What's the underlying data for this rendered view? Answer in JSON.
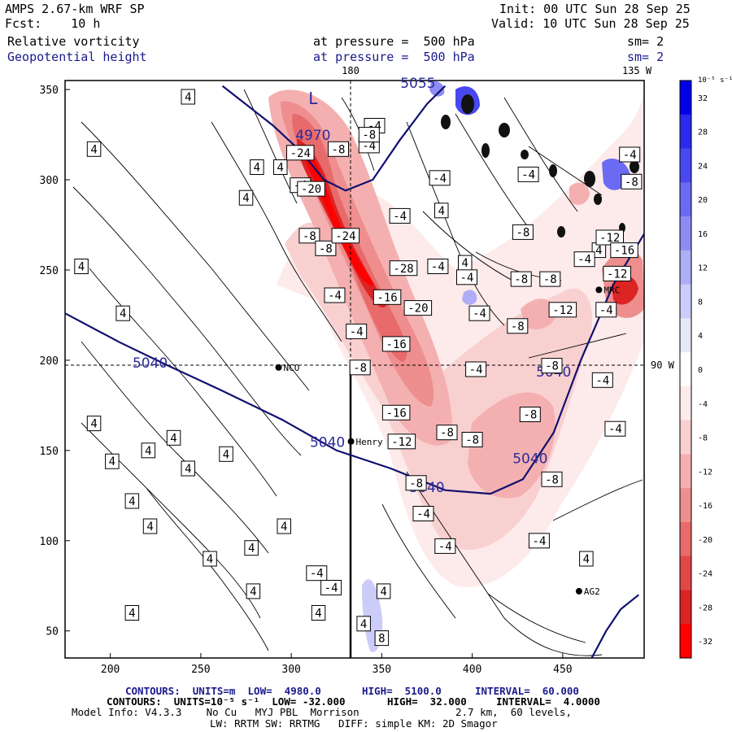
{
  "header": {
    "model": "AMPS 2.67-km WRF SP",
    "fcst": "Fcst:    10 h",
    "init": "Init: 00 UTC Sun 28 Sep 25",
    "valid": "Valid: 10 UTC Sun 28 Sep 25",
    "field1": "Relative vorticity",
    "field2": "Geopotential height",
    "pressure1": "at pressure =  500 hPa",
    "pressure2": "at pressure =  500 hPa",
    "sm1": "sm= 2",
    "sm2": "sm= 2"
  },
  "map": {
    "lon_top_180": "180",
    "lon_top_135w": "135 W",
    "lon_right_90w": "90 W",
    "stations": [
      {
        "name": "NCO",
        "x": 293,
        "y": 196
      },
      {
        "name": "Henry",
        "x": 333,
        "y": 155
      },
      {
        "name": "MRC",
        "x": 470,
        "y": 239
      },
      {
        "name": "AG2",
        "x": 459,
        "y": 72
      }
    ]
  },
  "colorbar": {
    "unit_label": "10⁻⁵ s⁻¹",
    "levels": [
      "32",
      "28",
      "24",
      "20",
      "16",
      "12",
      "8",
      "4",
      "0",
      "-4",
      "-8",
      "-12",
      "-16",
      "-20",
      "-24",
      "-28",
      "-32"
    ],
    "colors": [
      "#0000e8",
      "#2a2aee",
      "#4848f0",
      "#6a6af2",
      "#8c8cf4",
      "#aeaef6",
      "#ccccf8",
      "#e8e8fb",
      "#ffffff",
      "#fdeaea",
      "#f9d0d0",
      "#f4b0b0",
      "#ee8e8e",
      "#e86a6a",
      "#e24848",
      "#dc2424",
      "#ff0000"
    ]
  },
  "chart_data": {
    "type": "heatmap",
    "title": "Relative vorticity / Geopotential height at 500 hPa",
    "xlabel": "",
    "ylabel": "",
    "xlim": [
      175,
      495
    ],
    "ylim": [
      35,
      355
    ],
    "xticks": [
      "200",
      "250",
      "300",
      "350",
      "400",
      "450"
    ],
    "yticks": [
      "50",
      "100",
      "150",
      "200",
      "250",
      "300",
      "350"
    ],
    "height_contours": [
      {
        "label": "5040",
        "points": [
          [
            175,
            226
          ],
          [
            205,
            210
          ],
          [
            232,
            197
          ],
          [
            262,
            183
          ],
          [
            295,
            167
          ],
          [
            325,
            150
          ],
          [
            355,
            140
          ],
          [
            385,
            128
          ],
          [
            410,
            126
          ],
          [
            428,
            134
          ],
          [
            445,
            160
          ],
          [
            460,
            200
          ],
          [
            478,
            242
          ],
          [
            495,
            270
          ]
        ]
      },
      {
        "label": "L",
        "points": [
          [
            262,
            352
          ],
          [
            290,
            330
          ],
          [
            306,
            315
          ],
          [
            318,
            300
          ],
          [
            330,
            294
          ],
          [
            345,
            300
          ],
          [
            360,
            322
          ],
          [
            375,
            342
          ],
          [
            385,
            352
          ]
        ]
      },
      {
        "label": "",
        "points": [
          [
            466,
            35
          ],
          [
            474,
            50
          ],
          [
            482,
            62
          ],
          [
            492,
            70
          ]
        ]
      }
    ],
    "height_labels": [
      {
        "text": "5040",
        "x": 222,
        "y": 196
      },
      {
        "text": "5040",
        "x": 320,
        "y": 152
      },
      {
        "text": "5040",
        "x": 375,
        "y": 127
      },
      {
        "text": "5040",
        "x": 432,
        "y": 143
      },
      {
        "text": "5040",
        "x": 445,
        "y": 191
      },
      {
        "text": "4970",
        "x": 312,
        "y": 322
      },
      {
        "text": "L",
        "x": 312,
        "y": 342
      },
      {
        "text": "5055",
        "x": 370,
        "y": 351
      }
    ],
    "vorticity_labels": [
      {
        "v": "4",
        "x": 243,
        "y": 346
      },
      {
        "v": "4",
        "x": 191,
        "y": 317
      },
      {
        "v": "4",
        "x": 281,
        "y": 307
      },
      {
        "v": "4",
        "x": 294,
        "y": 307
      },
      {
        "v": "4",
        "x": 275,
        "y": 290
      },
      {
        "v": "4",
        "x": 184,
        "y": 252
      },
      {
        "v": "4",
        "x": 207,
        "y": 226
      },
      {
        "v": "4",
        "x": 191,
        "y": 165
      },
      {
        "v": "4",
        "x": 221,
        "y": 150
      },
      {
        "v": "4",
        "x": 235,
        "y": 157
      },
      {
        "v": "4",
        "x": 201,
        "y": 144
      },
      {
        "v": "4",
        "x": 264,
        "y": 148
      },
      {
        "v": "4",
        "x": 243,
        "y": 140
      },
      {
        "v": "4",
        "x": 212,
        "y": 122
      },
      {
        "v": "4",
        "x": 222,
        "y": 108
      },
      {
        "v": "4",
        "x": 296,
        "y": 108
      },
      {
        "v": "4",
        "x": 278,
        "y": 96
      },
      {
        "v": "4",
        "x": 255,
        "y": 90
      },
      {
        "v": "4",
        "x": 279,
        "y": 72
      },
      {
        "v": "4",
        "x": 212,
        "y": 60
      },
      {
        "v": "4",
        "x": 315,
        "y": 60
      },
      {
        "v": "4",
        "x": 340,
        "y": 54
      },
      {
        "v": "4",
        "x": 351,
        "y": 72
      },
      {
        "v": "4",
        "x": 463,
        "y": 90
      },
      {
        "v": "4",
        "x": 383,
        "y": 283
      },
      {
        "v": "4",
        "x": 396,
        "y": 254
      },
      {
        "v": "4",
        "x": 470,
        "y": 261
      },
      {
        "v": "8",
        "x": 350,
        "y": 46
      },
      {
        "v": "-4",
        "x": 305,
        "y": 297
      },
      {
        "v": "-4",
        "x": 343,
        "y": 319
      },
      {
        "v": "-4",
        "x": 360,
        "y": 280
      },
      {
        "v": "-4",
        "x": 381,
        "y": 252
      },
      {
        "v": "-4",
        "x": 397,
        "y": 246
      },
      {
        "v": "-4",
        "x": 404,
        "y": 226
      },
      {
        "v": "-4",
        "x": 324,
        "y": 236
      },
      {
        "v": "-4",
        "x": 336,
        "y": 216
      },
      {
        "v": "-4",
        "x": 382,
        "y": 301
      },
      {
        "v": "-4",
        "x": 431,
        "y": 303
      },
      {
        "v": "-4",
        "x": 462,
        "y": 256
      },
      {
        "v": "-4",
        "x": 474,
        "y": 228
      },
      {
        "v": "-4",
        "x": 402,
        "y": 195
      },
      {
        "v": "-4",
        "x": 472,
        "y": 189
      },
      {
        "v": "-4",
        "x": 346,
        "y": 330
      },
      {
        "v": "-4",
        "x": 487,
        "y": 314
      },
      {
        "v": "-4",
        "x": 479,
        "y": 162
      },
      {
        "v": "-4",
        "x": 373,
        "y": 115
      },
      {
        "v": "-4",
        "x": 385,
        "y": 97
      },
      {
        "v": "-4",
        "x": 437,
        "y": 100
      },
      {
        "v": "-4",
        "x": 314,
        "y": 82
      },
      {
        "v": "-4",
        "x": 322,
        "y": 74
      },
      {
        "v": "-8",
        "x": 326,
        "y": 317
      },
      {
        "v": "-8",
        "x": 343,
        "y": 325
      },
      {
        "v": "-8",
        "x": 310,
        "y": 269
      },
      {
        "v": "-8",
        "x": 319,
        "y": 262
      },
      {
        "v": "-8",
        "x": 338,
        "y": 196
      },
      {
        "v": "-8",
        "x": 428,
        "y": 271
      },
      {
        "v": "-8",
        "x": 425,
        "y": 219
      },
      {
        "v": "-8",
        "x": 427,
        "y": 245
      },
      {
        "v": "-8",
        "x": 443,
        "y": 245
      },
      {
        "v": "-8",
        "x": 444,
        "y": 197
      },
      {
        "v": "-8",
        "x": 386,
        "y": 160
      },
      {
        "v": "-8",
        "x": 400,
        "y": 156
      },
      {
        "v": "-8",
        "x": 432,
        "y": 170
      },
      {
        "v": "-8",
        "x": 444,
        "y": 134
      },
      {
        "v": "-8",
        "x": 369,
        "y": 132
      },
      {
        "v": "-8",
        "x": 488,
        "y": 299
      },
      {
        "v": "-12",
        "x": 361,
        "y": 155
      },
      {
        "v": "-12",
        "x": 450,
        "y": 228
      },
      {
        "v": "-12",
        "x": 476,
        "y": 268
      },
      {
        "v": "-12",
        "x": 480,
        "y": 248
      },
      {
        "v": "-16",
        "x": 353,
        "y": 235
      },
      {
        "v": "-16",
        "x": 358,
        "y": 209
      },
      {
        "v": "-16",
        "x": 358,
        "y": 171
      },
      {
        "v": "-16",
        "x": 484,
        "y": 261
      },
      {
        "v": "-20",
        "x": 370,
        "y": 229
      },
      {
        "v": "-20",
        "x": 311,
        "y": 295
      },
      {
        "v": "-24",
        "x": 305,
        "y": 315
      },
      {
        "v": "-24",
        "x": 330,
        "y": 269
      },
      {
        "v": "-28",
        "x": 362,
        "y": 251
      }
    ]
  },
  "footer": {
    "line1_a": "CONTOURS:  UNITS=m  LOW=  4980.0",
    "line1_b": "HIGH=  5100.0",
    "line1_c": "INTERVAL=  60.000",
    "line2_a": "CONTOURS:  UNITS=10⁻⁵ s⁻¹  LOW= -32.000",
    "line2_b": "HIGH=  32.000",
    "line2_c": "INTERVAL=  4.0000",
    "line3_a": "Model Info: V4.3.3    No Cu   MYJ PBL  Morrison",
    "line3_b": "2.7 km,  60 levels,",
    "line4": "LW: RRTM SW: RRTMG   DIFF: simple KM: 2D Smagor"
  }
}
